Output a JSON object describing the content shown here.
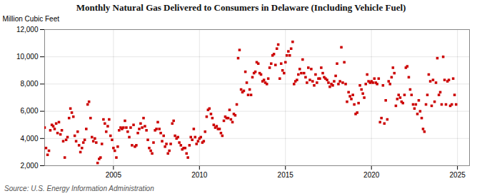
{
  "chart_data": {
    "type": "scatter",
    "title": "Monthly Natural Gas Delivered to Consumers in Delaware (Including Vehicle Fuel)",
    "ylabel": "Million Cubic Feet",
    "source": "Source: U.S. Energy Information Administration",
    "color": "#cc0000",
    "marker": "square",
    "grid": true,
    "xlim": [
      2001.0,
      2025.7
    ],
    "xticks": [
      2005,
      2010,
      2015,
      2020,
      2025
    ],
    "ylim": [
      2000,
      12000
    ],
    "yticks": [
      {
        "value": 2000,
        "label": "2,000"
      },
      {
        "value": 4000,
        "label": "4,000"
      },
      {
        "value": 6000,
        "label": "6,000"
      },
      {
        "value": 8000,
        "label": "8,000"
      },
      {
        "value": 10000,
        "label": "10,000"
      },
      {
        "value": 12000,
        "label": "12,000"
      }
    ],
    "x": [
      2001.0,
      2001.08,
      2001.17,
      2001.25,
      2001.33,
      2001.42,
      2001.5,
      2001.58,
      2001.67,
      2001.75,
      2001.83,
      2001.92,
      2002.0,
      2002.08,
      2002.17,
      2002.25,
      2002.33,
      2002.42,
      2002.5,
      2002.58,
      2002.67,
      2002.75,
      2002.83,
      2002.92,
      2003.0,
      2003.08,
      2003.17,
      2003.25,
      2003.33,
      2003.42,
      2003.5,
      2003.58,
      2003.67,
      2003.75,
      2003.83,
      2003.92,
      2004.0,
      2004.08,
      2004.17,
      2004.25,
      2004.33,
      2004.42,
      2004.5,
      2004.58,
      2004.67,
      2004.75,
      2004.83,
      2004.92,
      2005.0,
      2005.08,
      2005.17,
      2005.25,
      2005.33,
      2005.42,
      2005.5,
      2005.58,
      2005.67,
      2005.75,
      2005.83,
      2005.92,
      2006.0,
      2006.08,
      2006.17,
      2006.25,
      2006.33,
      2006.42,
      2006.5,
      2006.58,
      2006.67,
      2006.75,
      2006.83,
      2006.92,
      2007.0,
      2007.08,
      2007.17,
      2007.25,
      2007.33,
      2007.42,
      2007.5,
      2007.58,
      2007.67,
      2007.75,
      2007.83,
      2007.92,
      2008.0,
      2008.08,
      2008.17,
      2008.25,
      2008.33,
      2008.42,
      2008.5,
      2008.58,
      2008.67,
      2008.75,
      2008.83,
      2008.92,
      2009.0,
      2009.08,
      2009.17,
      2009.25,
      2009.33,
      2009.42,
      2009.5,
      2009.58,
      2009.67,
      2009.75,
      2009.83,
      2009.92,
      2010.0,
      2010.08,
      2010.17,
      2010.25,
      2010.33,
      2010.42,
      2010.5,
      2010.58,
      2010.67,
      2010.75,
      2010.83,
      2010.92,
      2011.0,
      2011.08,
      2011.17,
      2011.25,
      2011.33,
      2011.42,
      2011.5,
      2011.58,
      2011.67,
      2011.75,
      2011.83,
      2011.92,
      2012.0,
      2012.08,
      2012.17,
      2012.25,
      2012.33,
      2012.42,
      2012.5,
      2012.58,
      2012.67,
      2012.75,
      2012.83,
      2012.92,
      2013.0,
      2013.08,
      2013.17,
      2013.25,
      2013.33,
      2013.42,
      2013.5,
      2013.58,
      2013.67,
      2013.75,
      2013.83,
      2013.92,
      2014.0,
      2014.08,
      2014.17,
      2014.25,
      2014.33,
      2014.42,
      2014.5,
      2014.58,
      2014.67,
      2014.75,
      2014.83,
      2014.92,
      2015.0,
      2015.08,
      2015.17,
      2015.25,
      2015.33,
      2015.42,
      2015.5,
      2015.58,
      2015.67,
      2015.75,
      2015.83,
      2015.92,
      2016.0,
      2016.08,
      2016.17,
      2016.25,
      2016.33,
      2016.42,
      2016.5,
      2016.58,
      2016.67,
      2016.75,
      2016.83,
      2016.92,
      2017.0,
      2017.08,
      2017.17,
      2017.25,
      2017.33,
      2017.42,
      2017.5,
      2017.58,
      2017.67,
      2017.75,
      2017.83,
      2017.92,
      2018.0,
      2018.08,
      2018.17,
      2018.25,
      2018.33,
      2018.42,
      2018.5,
      2018.58,
      2018.67,
      2018.75,
      2018.83,
      2018.92,
      2019.0,
      2019.08,
      2019.17,
      2019.25,
      2019.33,
      2019.42,
      2019.5,
      2019.58,
      2019.67,
      2019.75,
      2019.83,
      2019.92,
      2020.0,
      2020.08,
      2020.17,
      2020.25,
      2020.33,
      2020.42,
      2020.5,
      2020.58,
      2020.67,
      2020.75,
      2020.83,
      2020.92,
      2021.0,
      2021.08,
      2021.17,
      2021.25,
      2021.33,
      2021.42,
      2021.5,
      2021.58,
      2021.67,
      2021.75,
      2021.83,
      2021.92,
      2022.0,
      2022.08,
      2022.17,
      2022.25,
      2022.33,
      2022.42,
      2022.5,
      2022.58,
      2022.67,
      2022.75,
      2022.83,
      2022.92,
      2023.0,
      2023.08,
      2023.17,
      2023.25,
      2023.33,
      2023.42,
      2023.5,
      2023.58,
      2023.67,
      2023.75,
      2023.83,
      2023.92,
      2024.0,
      2024.08,
      2024.17,
      2024.25,
      2024.33,
      2024.42,
      2024.5,
      2024.58,
      2024.67,
      2024.75,
      2024.83,
      2024.92
    ],
    "values": [
      4800,
      3300,
      2800,
      3100,
      4600,
      5000,
      4900,
      4700,
      5100,
      4400,
      5200,
      4300,
      4600,
      3800,
      2600,
      3900,
      4100,
      5500,
      6200,
      5900,
      5600,
      4200,
      3800,
      4500,
      3500,
      3000,
      3300,
      3700,
      3900,
      4700,
      6500,
      6700,
      5500,
      4100,
      3800,
      4000,
      3700,
      2200,
      2500,
      2600,
      3600,
      5400,
      5100,
      4500,
      4900,
      5400,
      4200,
      3900,
      3300,
      3100,
      2600,
      3400,
      4600,
      4800,
      4700,
      4800,
      5300,
      4800,
      4500,
      4100,
      4800,
      3500,
      5000,
      3400,
      3500,
      4400,
      4700,
      5100,
      4800,
      5500,
      4900,
      4600,
      3900,
      3300,
      3100,
      2900,
      3700,
      4600,
      4700,
      5200,
      4700,
      4400,
      3800,
      4200,
      3400,
      3600,
      2900,
      3100,
      3600,
      5100,
      5300,
      4200,
      4000,
      4100,
      3700,
      3500,
      3200,
      3300,
      3300,
      2900,
      2600,
      3500,
      4100,
      3900,
      4700,
      4100,
      3600,
      3800,
      4000,
      4100,
      3700,
      3800,
      4500,
      5600,
      6100,
      6200,
      5800,
      5500,
      5000,
      4800,
      4900,
      4700,
      4700,
      4400,
      4200,
      5300,
      5600,
      5500,
      5500,
      6100,
      5400,
      5200,
      5800,
      5700,
      6500,
      9900,
      10500,
      7600,
      7400,
      7500,
      8900,
      8100,
      7200,
      7600,
      7200,
      8500,
      8800,
      8900,
      9600,
      9500,
      8800,
      8700,
      8200,
      8300,
      8100,
      8000,
      8400,
      9200,
      9500,
      10100,
      10200,
      9400,
      10600,
      10900,
      8400,
      9500,
      9000,
      8800,
      9600,
      10100,
      10400,
      10100,
      10600,
      11100,
      8000,
      8200,
      8300,
      8700,
      9100,
      8800,
      9800,
      8800,
      8500,
      8100,
      9200,
      8300,
      9100,
      8200,
      7900,
      8700,
      8100,
      8400,
      8400,
      9200,
      8800,
      8500,
      8400,
      8300,
      8100,
      7800,
      8000,
      7900,
      8200,
      8600,
      9500,
      8000,
      8200,
      10700,
      8100,
      9600,
      8000,
      6700,
      7400,
      7100,
      6900,
      7200,
      6500,
      5800,
      5900,
      6600,
      7900,
      7600,
      7300,
      7000,
      8000,
      8700,
      8200,
      8100,
      8200,
      8100,
      8400,
      8100,
      8000,
      8400,
      5200,
      5500,
      7900,
      5100,
      6800,
      5400,
      8200,
      8000,
      8500,
      9200,
      8800,
      6400,
      6900,
      7200,
      7000,
      6700,
      6600,
      7200,
      9200,
      9300,
      8500,
      7600,
      7200,
      6500,
      6200,
      6500,
      5800,
      6800,
      6000,
      5500,
      4700,
      4500,
      6500,
      7200,
      8700,
      8200,
      6400,
      8300,
      6700,
      8100,
      9900,
      7200,
      7400,
      6500,
      10000,
      8300,
      6500,
      8200,
      8300,
      6400,
      6500,
      8400,
      7200,
      6500
    ]
  }
}
